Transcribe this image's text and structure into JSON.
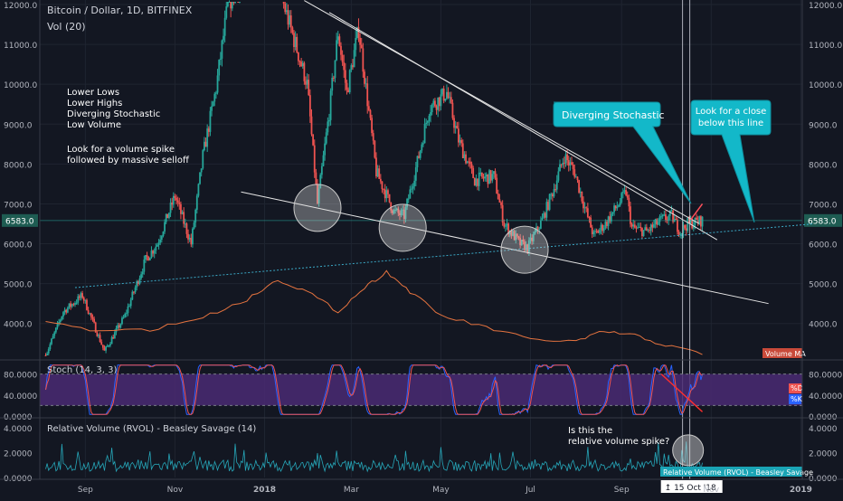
{
  "chart_data": {
    "type": "candlestick",
    "title": "Bitcoin / Dollar, 1D, BITFINEX",
    "subtitle": "Vol (20)",
    "current_price": "6583.0",
    "price_axis": {
      "min": 3200,
      "max": 12000,
      "ticks": [
        "12000.0",
        "11000.0",
        "10000.0",
        "9000.0",
        "8000.0",
        "7000.0",
        "6000.0",
        "5000.0",
        "4000.0"
      ]
    },
    "x_ticks": [
      "Sep",
      "Nov",
      "2018",
      "Mar",
      "May",
      "Jul",
      "Sep",
      "Nov",
      "2019"
    ],
    "price_path": [
      {
        "x": "2017-08-05",
        "y": 3200
      },
      {
        "x": "2017-08-17",
        "y": 4300
      },
      {
        "x": "2017-08-30",
        "y": 4700
      },
      {
        "x": "2017-09-14",
        "y": 3300
      },
      {
        "x": "2017-09-28",
        "y": 4200
      },
      {
        "x": "2017-10-12",
        "y": 5600
      },
      {
        "x": "2017-10-20",
        "y": 6000
      },
      {
        "x": "2017-11-01",
        "y": 7200
      },
      {
        "x": "2017-11-12",
        "y": 6000
      },
      {
        "x": "2017-11-20",
        "y": 8200
      },
      {
        "x": "2017-11-29",
        "y": 9900
      },
      {
        "x": "2017-12-07",
        "y": 12000
      },
      {
        "x": "2017-12-22",
        "y": 13000
      },
      {
        "x": "2018-01-06",
        "y": 14500
      },
      {
        "x": "2018-01-14",
        "y": 12000
      },
      {
        "x": "2018-01-22",
        "y": 11000
      },
      {
        "x": "2018-01-30",
        "y": 10000
      },
      {
        "x": "2018-02-06",
        "y": 7000
      },
      {
        "x": "2018-02-14",
        "y": 9300
      },
      {
        "x": "2018-02-20",
        "y": 11300
      },
      {
        "x": "2018-02-26",
        "y": 9800
      },
      {
        "x": "2018-03-06",
        "y": 11400
      },
      {
        "x": "2018-03-18",
        "y": 7800
      },
      {
        "x": "2018-03-30",
        "y": 6800
      },
      {
        "x": "2018-04-06",
        "y": 6700
      },
      {
        "x": "2018-04-16",
        "y": 8200
      },
      {
        "x": "2018-04-23",
        "y": 9400
      },
      {
        "x": "2018-05-05",
        "y": 9800
      },
      {
        "x": "2018-05-13",
        "y": 8600
      },
      {
        "x": "2018-05-24",
        "y": 7600
      },
      {
        "x": "2018-06-06",
        "y": 7700
      },
      {
        "x": "2018-06-13",
        "y": 6500
      },
      {
        "x": "2018-06-24",
        "y": 6000
      },
      {
        "x": "2018-06-29",
        "y": 5900
      },
      {
        "x": "2018-07-09",
        "y": 6600
      },
      {
        "x": "2018-07-17",
        "y": 7400
      },
      {
        "x": "2018-07-24",
        "y": 8200
      },
      {
        "x": "2018-07-31",
        "y": 7800
      },
      {
        "x": "2018-08-07",
        "y": 6900
      },
      {
        "x": "2018-08-13",
        "y": 6200
      },
      {
        "x": "2018-08-21",
        "y": 6500
      },
      {
        "x": "2018-08-30",
        "y": 7000
      },
      {
        "x": "2018-09-04",
        "y": 7300
      },
      {
        "x": "2018-09-08",
        "y": 6400
      },
      {
        "x": "2018-09-18",
        "y": 6300
      },
      {
        "x": "2018-09-28",
        "y": 6600
      },
      {
        "x": "2018-10-05",
        "y": 6700
      },
      {
        "x": "2018-10-11",
        "y": 6300
      },
      {
        "x": "2018-10-16",
        "y": 6500
      },
      {
        "x": "2018-10-26",
        "y": 6583
      }
    ],
    "volume_ma_path": [
      {
        "x": "2017-08-05",
        "y": 4050
      },
      {
        "x": "2017-09-10",
        "y": 3800
      },
      {
        "x": "2017-10-15",
        "y": 3850
      },
      {
        "x": "2017-11-20",
        "y": 4150
      },
      {
        "x": "2017-12-20",
        "y": 4600
      },
      {
        "x": "2018-01-10",
        "y": 5100
      },
      {
        "x": "2018-01-30",
        "y": 4800
      },
      {
        "x": "2018-02-20",
        "y": 4300
      },
      {
        "x": "2018-03-10",
        "y": 4900
      },
      {
        "x": "2018-03-25",
        "y": 5300
      },
      {
        "x": "2018-04-10",
        "y": 4800
      },
      {
        "x": "2018-05-01",
        "y": 4200
      },
      {
        "x": "2018-06-01",
        "y": 3900
      },
      {
        "x": "2018-07-01",
        "y": 3600
      },
      {
        "x": "2018-08-01",
        "y": 3550
      },
      {
        "x": "2018-08-20",
        "y": 3800
      },
      {
        "x": "2018-09-10",
        "y": 3700
      },
      {
        "x": "2018-10-01",
        "y": 3450
      },
      {
        "x": "2018-10-26",
        "y": 3250
      }
    ],
    "volume_ma_label": "Volume MA",
    "trendlines": [
      {
        "name": "upper-resistance-1",
        "from": {
          "x": "2018-01-28",
          "y": 12100
        },
        "to": {
          "x": "2018-10-24",
          "y": 6500
        }
      },
      {
        "name": "upper-resistance-2",
        "from": {
          "x": "2018-02-14",
          "y": 11800
        },
        "to": {
          "x": "2018-11-05",
          "y": 6100
        }
      },
      {
        "name": "lower-support",
        "from": {
          "x": "2017-12-16",
          "y": 7300
        },
        "to": {
          "x": "2018-12-10",
          "y": 4500
        }
      },
      {
        "name": "long-term-support",
        "from": {
          "x": "2017-08-25",
          "y": 4900
        },
        "to": {
          "x": "2019-01-10",
          "y": 6500
        }
      },
      {
        "name": "red-breakout-line",
        "from": {
          "x": "2018-10-18",
          "y": 6600
        },
        "to": {
          "x": "2018-10-26",
          "y": 7000
        }
      }
    ],
    "circled_lows": [
      {
        "x": "2018-02-06",
        "y": 6900
      },
      {
        "x": "2018-04-05",
        "y": 6400
      },
      {
        "x": "2018-06-27",
        "y": 5850
      }
    ],
    "notes_left": [
      "Lower Lows",
      "Lower Highs",
      "Diverging Stochastic",
      "Low Volume"
    ],
    "notes_left2": [
      "Look for a volume spike",
      "followed by massive selloff"
    ],
    "callout_stoch": "Diverging Stochastic",
    "callout_close": [
      "Look for a close",
      "below this line"
    ],
    "stoch": {
      "label": "Stoch (14, 3, 3)",
      "ticks": [
        "80.0000",
        "40.0000",
        "0.0000"
      ],
      "band": [
        20,
        80
      ],
      "series_k_name": "%K",
      "series_d_name": "%D",
      "series_k_color": "#2962ff",
      "series_d_color": "#ef5350",
      "divergence_line": {
        "from": {
          "x": "2018-09-28",
          "y": 80
        },
        "to": {
          "x": "2018-10-26",
          "y": 8
        }
      }
    },
    "rvol": {
      "label": "Relative Volume (RVOL) - Beasley Savage (14)",
      "ticks": [
        "4.0000",
        "2.0000",
        "0.0000"
      ],
      "legend_tag": "Relative Volume (RVOL) - Beasley Savage",
      "annotation": [
        "Is this the",
        "relative volume spike?"
      ],
      "spike": {
        "x": "2018-10-15",
        "y": 2.9
      }
    },
    "crosshair_date": "15 Oct '18",
    "colors": {
      "up": "#26a69a",
      "down": "#ef5350",
      "bg": "#131722",
      "stoch_band": "#4a2a73",
      "callout": "#13b8c9",
      "volume_ma": "#e5733f"
    }
  }
}
